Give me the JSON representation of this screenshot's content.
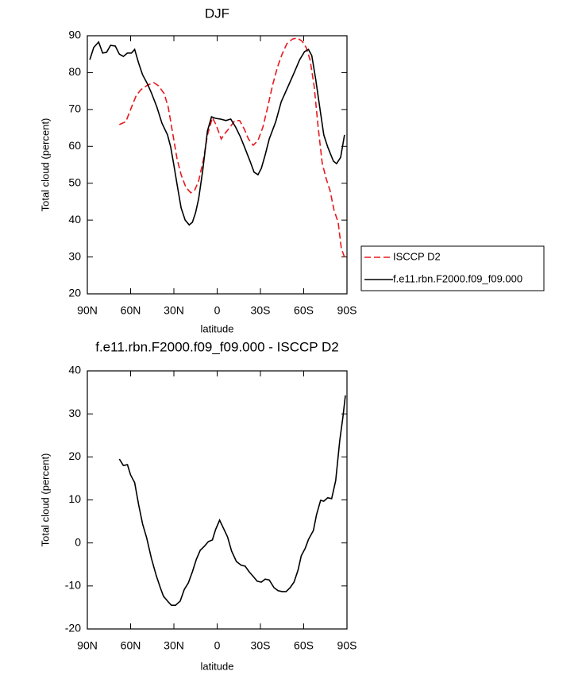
{
  "chart_data": [
    {
      "type": "line",
      "title": "DJF",
      "xlabel": "latitude",
      "ylabel": "Total cloud (percent)",
      "xlim": [
        90,
        -90
      ],
      "xticks": [
        {
          "value": 90,
          "label": "90N"
        },
        {
          "value": 60,
          "label": "60N"
        },
        {
          "value": 30,
          "label": "30N"
        },
        0,
        {
          "value": -30,
          "label": "30S"
        },
        {
          "value": -60,
          "label": "60S"
        },
        {
          "value": -90,
          "label": "90S"
        }
      ],
      "ylim": [
        20,
        90
      ],
      "yticks": [
        20,
        30,
        40,
        50,
        60,
        70,
        80,
        90
      ],
      "legend": "right",
      "series": [
        {
          "name": "ISCCP D2",
          "color": "#e8191c",
          "line_style": "dashed",
          "x": [
            67.8,
            63.3,
            59.4,
            56.1,
            52.8,
            48.3,
            43.9,
            40.6,
            36.7,
            33.9,
            31.1,
            27.8,
            25,
            21.7,
            18.3,
            15.6,
            12.8,
            9.4,
            6.7,
            3.3,
            0.6,
            -2.8,
            -5.6,
            -8.9,
            -12.2,
            -15.6,
            -18.9,
            -21.7,
            -25,
            -28.3,
            -31.7,
            -35,
            -38.3,
            -41.7,
            -45,
            -48.3,
            -52.2,
            -55.6,
            -58.9,
            -61.7,
            -64.4,
            -67.2,
            -70,
            -72.8,
            -75.6,
            -78.3,
            -81.1,
            -83.9,
            -86.1,
            -88.9
          ],
          "values": [
            65.9,
            66.7,
            70.6,
            73.8,
            75.4,
            76.6,
            77.3,
            76.4,
            74.3,
            70.6,
            64.2,
            56.6,
            52.3,
            48.9,
            47.4,
            48.1,
            50.6,
            56.6,
            63.1,
            67.8,
            65.7,
            62,
            63.6,
            65.2,
            67,
            67,
            64.6,
            62,
            60.3,
            61.6,
            65.2,
            70.6,
            76.4,
            81.4,
            85,
            87.8,
            89.1,
            89.4,
            88.5,
            86.8,
            83.5,
            76.4,
            65.2,
            55.5,
            51.2,
            48,
            42.6,
            39.4,
            32.3,
            29.3
          ]
        },
        {
          "name": "f.e11.rbn.F2000.f09_f09.000",
          "color": "#000000",
          "line_style": "solid",
          "x": [
            88.3,
            85.6,
            82.2,
            79.4,
            76.7,
            73.9,
            70.6,
            67.8,
            65,
            62.2,
            59.4,
            57.2,
            54.4,
            51.7,
            48.3,
            45.6,
            41.7,
            38.3,
            34.4,
            32.2,
            30,
            27.8,
            25,
            22.2,
            19.4,
            17.2,
            15,
            12.8,
            10,
            6.7,
            3.9,
            1.1,
            -2.2,
            -6.1,
            -9.4,
            -12.8,
            -16.1,
            -19.4,
            -22.8,
            -25.6,
            -28.3,
            -30.6,
            -33.3,
            -36.1,
            -40.6,
            -44.4,
            -48.9,
            -53.3,
            -57.2,
            -60.6,
            -63.3,
            -65.6,
            -68.3,
            -71.1,
            -73.9,
            -76.7,
            -80.6,
            -82.8,
            -85.6,
            -88.3
          ],
          "values": [
            83.5,
            86.8,
            88.3,
            85.3,
            85.5,
            87.4,
            87.2,
            85,
            84.4,
            85.3,
            85.3,
            86.3,
            82.5,
            79.4,
            76.9,
            74.5,
            70.6,
            66.3,
            63.1,
            59.8,
            54.9,
            49.7,
            43.3,
            40,
            38.7,
            39.4,
            42,
            45.8,
            53.4,
            64.2,
            68,
            67.6,
            67.4,
            67,
            67.4,
            65.2,
            62.6,
            59.4,
            56,
            53,
            52.3,
            54,
            57.7,
            62,
            66.7,
            72.1,
            76,
            79.9,
            83.5,
            85.7,
            86.3,
            84.6,
            78.2,
            70.6,
            63.1,
            59.8,
            56,
            55.3,
            57,
            63.1
          ]
        }
      ]
    },
    {
      "type": "line",
      "title": "f.e11.rbn.F2000.f09_f09.000 - ISCCP D2",
      "xlabel": "latitude",
      "ylabel": "Total cloud (percent)",
      "xlim": [
        90,
        -90
      ],
      "xticks": [
        {
          "value": 90,
          "label": "90N"
        },
        {
          "value": 60,
          "label": "60N"
        },
        {
          "value": 30,
          "label": "30N"
        },
        0,
        {
          "value": -30,
          "label": "30S"
        },
        {
          "value": -60,
          "label": "60S"
        },
        {
          "value": -90,
          "label": "90S"
        }
      ],
      "ylim": [
        -20,
        40
      ],
      "yticks": [
        -20,
        -10,
        0,
        10,
        20,
        30,
        40
      ],
      "color": "#000000",
      "x": [
        67.8,
        65,
        62.2,
        60,
        57.2,
        54.4,
        51.7,
        48.9,
        45.6,
        42.2,
        39.4,
        37.2,
        33.9,
        31.7,
        28.9,
        25.6,
        22.8,
        20,
        17.2,
        14.4,
        11.7,
        8.9,
        6.1,
        3.3,
        1.1,
        -1.7,
        -4.4,
        -7.2,
        -10,
        -13.3,
        -16.7,
        -19.4,
        -22.2,
        -25,
        -27.8,
        -30.6,
        -33.3,
        -36.1,
        -39.4,
        -42.2,
        -45,
        -47.8,
        -50.6,
        -53.3,
        -56.1,
        -58.3,
        -61.1,
        -63.3,
        -66.7,
        -68.9,
        -71.7,
        -73.9,
        -76.7,
        -79.4,
        -82.2,
        -85,
        -87.2,
        -88.9
      ],
      "values": [
        19.5,
        18,
        18.2,
        15.8,
        14,
        8.8,
        4.4,
        1.2,
        -3.6,
        -7.6,
        -10.4,
        -12.4,
        -13.7,
        -14.5,
        -14.5,
        -13.5,
        -10.8,
        -9.3,
        -6.7,
        -3.8,
        -1.7,
        -0.8,
        0.3,
        0.7,
        3.1,
        5.3,
        3.4,
        1.4,
        -1.9,
        -4.3,
        -5.2,
        -5.4,
        -6.7,
        -7.8,
        -8.9,
        -9.1,
        -8.4,
        -8.6,
        -10.4,
        -11.1,
        -11.3,
        -11.3,
        -10.4,
        -9.1,
        -6.3,
        -3,
        -1.2,
        0.8,
        2.9,
        6.6,
        9.9,
        9.7,
        10.5,
        10.3,
        14.5,
        23.8,
        29.3,
        34.3
      ]
    }
  ]
}
